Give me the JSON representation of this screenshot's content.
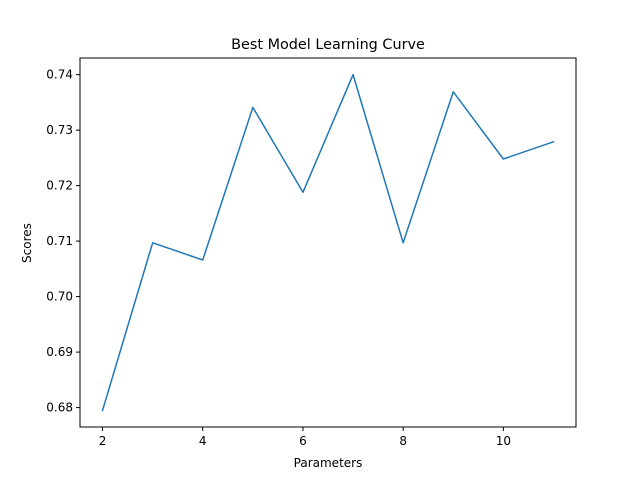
{
  "chart_data": {
    "type": "line",
    "title": "Best Model Learning Curve",
    "xlabel": "Parameters",
    "ylabel": "Scores",
    "xlim": [
      1.55,
      11.45
    ],
    "ylim": [
      0.6765,
      0.743
    ],
    "xticks": [
      2,
      4,
      6,
      8,
      10
    ],
    "yticks": [
      0.68,
      0.69,
      0.7,
      0.71,
      0.72,
      0.73,
      0.74
    ],
    "ytick_labels": [
      "0.68",
      "0.69",
      "0.70",
      "0.71",
      "0.72",
      "0.73",
      "0.74"
    ],
    "grid": false,
    "series": [
      {
        "color": "#1f77b4",
        "x": [
          2,
          3,
          4,
          5,
          6,
          7,
          8,
          9,
          10,
          11
        ],
        "values": [
          0.6795,
          0.7097,
          0.7066,
          0.7341,
          0.7188,
          0.74,
          0.7097,
          0.7369,
          0.7248,
          0.7279
        ]
      }
    ]
  }
}
